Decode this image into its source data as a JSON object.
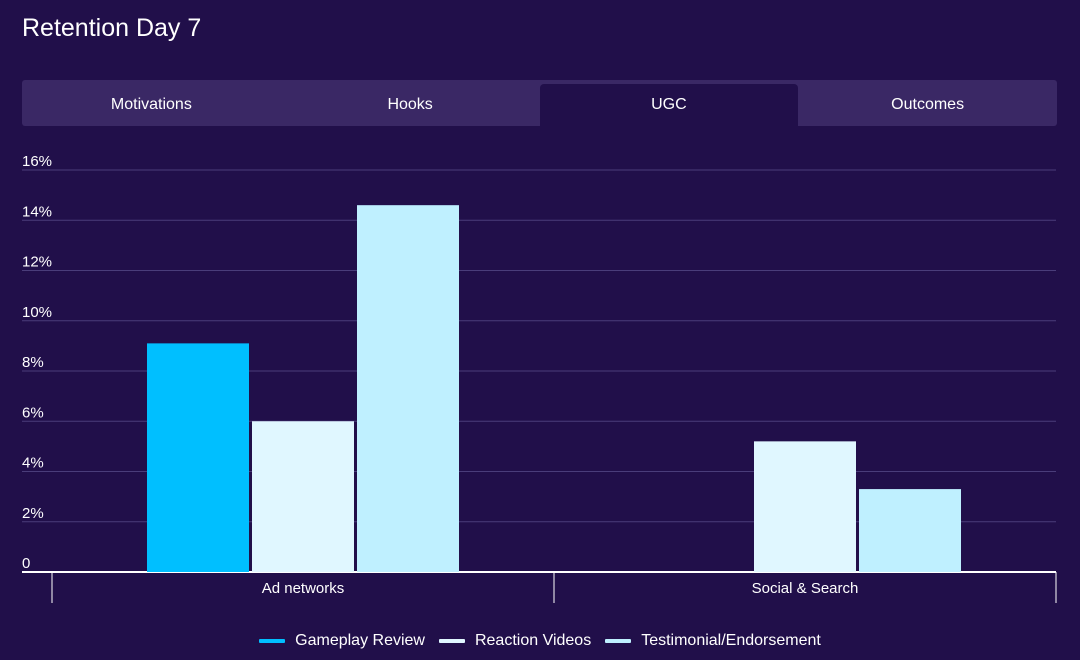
{
  "page_title": "Retention Day 7",
  "tabs": [
    {
      "label": "Motivations",
      "active": false
    },
    {
      "label": "Hooks",
      "active": false
    },
    {
      "label": "UGC",
      "active": true
    },
    {
      "label": "Outcomes",
      "active": false
    }
  ],
  "chart_data": {
    "type": "bar",
    "title": "Retention Day 7",
    "categories": [
      "Ad networks",
      "Social & Search"
    ],
    "series": [
      {
        "name": "Gameplay Review",
        "color": "#00bfff",
        "values": [
          9.1,
          null
        ]
      },
      {
        "name": "Reaction Videos",
        "color": "#e0f7ff",
        "values": [
          6.0,
          5.2
        ]
      },
      {
        "name": "Testimonial/Endorsement",
        "color": "#bff0ff",
        "values": [
          14.6,
          3.3
        ]
      }
    ],
    "yticks": [
      0,
      2,
      4,
      6,
      8,
      10,
      12,
      14,
      16
    ],
    "ytick_labels": [
      "0",
      "2%",
      "4%",
      "6%",
      "8%",
      "10%",
      "12%",
      "14%",
      "16%"
    ],
    "ylim": [
      0,
      16
    ],
    "grid": true,
    "legend_position": "bottom"
  }
}
